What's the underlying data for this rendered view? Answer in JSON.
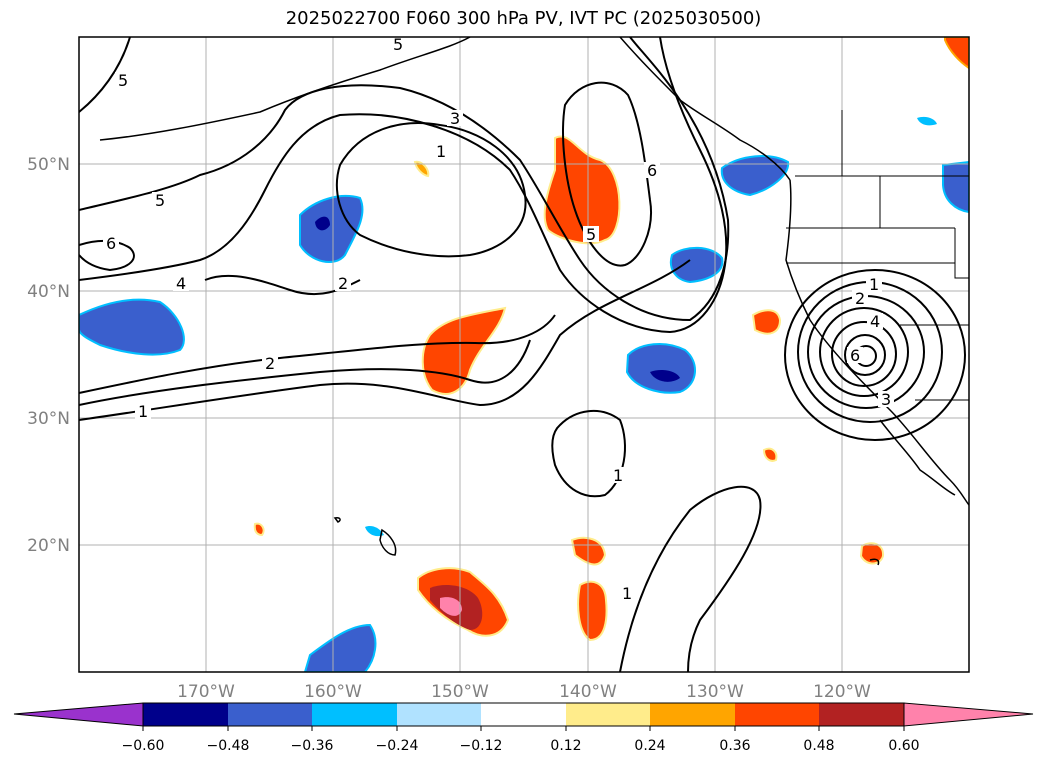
{
  "title": "2025022700 F060 300 hPa PV, IVT PC (2025030500)",
  "map": {
    "lat_range": [
      10,
      60
    ],
    "lon_range": [
      -180,
      -110
    ],
    "lat_labels": [
      "50°N",
      "40°N",
      "30°N",
      "20°N"
    ],
    "lon_labels": [
      "170°W",
      "160°W",
      "150°W",
      "140°W",
      "130°W",
      "120°W"
    ],
    "contour_labels": [
      "5",
      "5",
      "3",
      "1",
      "6",
      "5",
      "6",
      "4",
      "2",
      "2",
      "1",
      "1",
      "1",
      "5",
      "1",
      "2",
      "4",
      "6",
      "3"
    ]
  },
  "colorbar": {
    "ticks": [
      "−0.60",
      "−0.48",
      "−0.36",
      "−0.24",
      "−0.12",
      "0.12",
      "0.24",
      "0.36",
      "0.48",
      "0.60"
    ],
    "colors": [
      "#9a32cd",
      "#00008b",
      "#3a5fcd",
      "#00bfff",
      "#b0e2ff",
      "#ffffff",
      "#ffec8b",
      "#ffa500",
      "#ff4500",
      "#b22222",
      "#ff82ab"
    ]
  }
}
